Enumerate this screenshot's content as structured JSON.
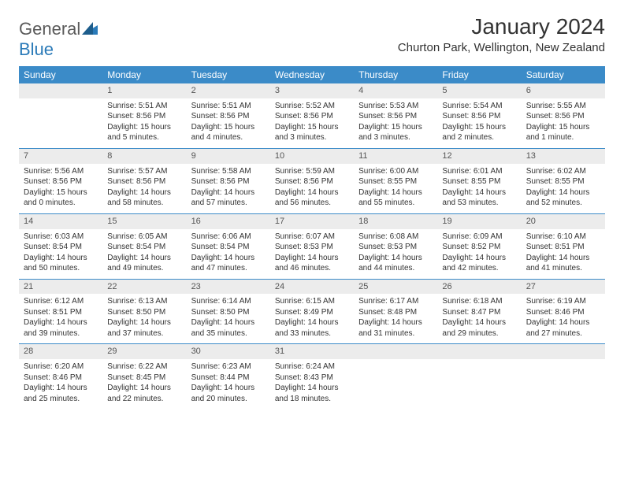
{
  "logo": {
    "text1": "General",
    "text2": "Blue"
  },
  "title": "January 2024",
  "location": "Churton Park, Wellington, New Zealand",
  "colors": {
    "header_bg": "#3b8bc8",
    "header_text": "#ffffff",
    "daynum_bg": "#ececec",
    "row_border": "#3b8bc8",
    "logo_gray": "#5a5a5a",
    "logo_blue": "#2a7ab8"
  },
  "typography": {
    "title_fontsize": 28,
    "location_fontsize": 15,
    "weekday_fontsize": 12,
    "daynum_fontsize": 11,
    "body_fontsize": 10
  },
  "weekdays": [
    "Sunday",
    "Monday",
    "Tuesday",
    "Wednesday",
    "Thursday",
    "Friday",
    "Saturday"
  ],
  "weeks": [
    [
      null,
      {
        "n": "1",
        "sunrise": "Sunrise: 5:51 AM",
        "sunset": "Sunset: 8:56 PM",
        "day": "Daylight: 15 hours and 5 minutes."
      },
      {
        "n": "2",
        "sunrise": "Sunrise: 5:51 AM",
        "sunset": "Sunset: 8:56 PM",
        "day": "Daylight: 15 hours and 4 minutes."
      },
      {
        "n": "3",
        "sunrise": "Sunrise: 5:52 AM",
        "sunset": "Sunset: 8:56 PM",
        "day": "Daylight: 15 hours and 3 minutes."
      },
      {
        "n": "4",
        "sunrise": "Sunrise: 5:53 AM",
        "sunset": "Sunset: 8:56 PM",
        "day": "Daylight: 15 hours and 3 minutes."
      },
      {
        "n": "5",
        "sunrise": "Sunrise: 5:54 AM",
        "sunset": "Sunset: 8:56 PM",
        "day": "Daylight: 15 hours and 2 minutes."
      },
      {
        "n": "6",
        "sunrise": "Sunrise: 5:55 AM",
        "sunset": "Sunset: 8:56 PM",
        "day": "Daylight: 15 hours and 1 minute."
      }
    ],
    [
      {
        "n": "7",
        "sunrise": "Sunrise: 5:56 AM",
        "sunset": "Sunset: 8:56 PM",
        "day": "Daylight: 15 hours and 0 minutes."
      },
      {
        "n": "8",
        "sunrise": "Sunrise: 5:57 AM",
        "sunset": "Sunset: 8:56 PM",
        "day": "Daylight: 14 hours and 58 minutes."
      },
      {
        "n": "9",
        "sunrise": "Sunrise: 5:58 AM",
        "sunset": "Sunset: 8:56 PM",
        "day": "Daylight: 14 hours and 57 minutes."
      },
      {
        "n": "10",
        "sunrise": "Sunrise: 5:59 AM",
        "sunset": "Sunset: 8:56 PM",
        "day": "Daylight: 14 hours and 56 minutes."
      },
      {
        "n": "11",
        "sunrise": "Sunrise: 6:00 AM",
        "sunset": "Sunset: 8:55 PM",
        "day": "Daylight: 14 hours and 55 minutes."
      },
      {
        "n": "12",
        "sunrise": "Sunrise: 6:01 AM",
        "sunset": "Sunset: 8:55 PM",
        "day": "Daylight: 14 hours and 53 minutes."
      },
      {
        "n": "13",
        "sunrise": "Sunrise: 6:02 AM",
        "sunset": "Sunset: 8:55 PM",
        "day": "Daylight: 14 hours and 52 minutes."
      }
    ],
    [
      {
        "n": "14",
        "sunrise": "Sunrise: 6:03 AM",
        "sunset": "Sunset: 8:54 PM",
        "day": "Daylight: 14 hours and 50 minutes."
      },
      {
        "n": "15",
        "sunrise": "Sunrise: 6:05 AM",
        "sunset": "Sunset: 8:54 PM",
        "day": "Daylight: 14 hours and 49 minutes."
      },
      {
        "n": "16",
        "sunrise": "Sunrise: 6:06 AM",
        "sunset": "Sunset: 8:54 PM",
        "day": "Daylight: 14 hours and 47 minutes."
      },
      {
        "n": "17",
        "sunrise": "Sunrise: 6:07 AM",
        "sunset": "Sunset: 8:53 PM",
        "day": "Daylight: 14 hours and 46 minutes."
      },
      {
        "n": "18",
        "sunrise": "Sunrise: 6:08 AM",
        "sunset": "Sunset: 8:53 PM",
        "day": "Daylight: 14 hours and 44 minutes."
      },
      {
        "n": "19",
        "sunrise": "Sunrise: 6:09 AM",
        "sunset": "Sunset: 8:52 PM",
        "day": "Daylight: 14 hours and 42 minutes."
      },
      {
        "n": "20",
        "sunrise": "Sunrise: 6:10 AM",
        "sunset": "Sunset: 8:51 PM",
        "day": "Daylight: 14 hours and 41 minutes."
      }
    ],
    [
      {
        "n": "21",
        "sunrise": "Sunrise: 6:12 AM",
        "sunset": "Sunset: 8:51 PM",
        "day": "Daylight: 14 hours and 39 minutes."
      },
      {
        "n": "22",
        "sunrise": "Sunrise: 6:13 AM",
        "sunset": "Sunset: 8:50 PM",
        "day": "Daylight: 14 hours and 37 minutes."
      },
      {
        "n": "23",
        "sunrise": "Sunrise: 6:14 AM",
        "sunset": "Sunset: 8:50 PM",
        "day": "Daylight: 14 hours and 35 minutes."
      },
      {
        "n": "24",
        "sunrise": "Sunrise: 6:15 AM",
        "sunset": "Sunset: 8:49 PM",
        "day": "Daylight: 14 hours and 33 minutes."
      },
      {
        "n": "25",
        "sunrise": "Sunrise: 6:17 AM",
        "sunset": "Sunset: 8:48 PM",
        "day": "Daylight: 14 hours and 31 minutes."
      },
      {
        "n": "26",
        "sunrise": "Sunrise: 6:18 AM",
        "sunset": "Sunset: 8:47 PM",
        "day": "Daylight: 14 hours and 29 minutes."
      },
      {
        "n": "27",
        "sunrise": "Sunrise: 6:19 AM",
        "sunset": "Sunset: 8:46 PM",
        "day": "Daylight: 14 hours and 27 minutes."
      }
    ],
    [
      {
        "n": "28",
        "sunrise": "Sunrise: 6:20 AM",
        "sunset": "Sunset: 8:46 PM",
        "day": "Daylight: 14 hours and 25 minutes."
      },
      {
        "n": "29",
        "sunrise": "Sunrise: 6:22 AM",
        "sunset": "Sunset: 8:45 PM",
        "day": "Daylight: 14 hours and 22 minutes."
      },
      {
        "n": "30",
        "sunrise": "Sunrise: 6:23 AM",
        "sunset": "Sunset: 8:44 PM",
        "day": "Daylight: 14 hours and 20 minutes."
      },
      {
        "n": "31",
        "sunrise": "Sunrise: 6:24 AM",
        "sunset": "Sunset: 8:43 PM",
        "day": "Daylight: 14 hours and 18 minutes."
      },
      null,
      null,
      null
    ]
  ]
}
